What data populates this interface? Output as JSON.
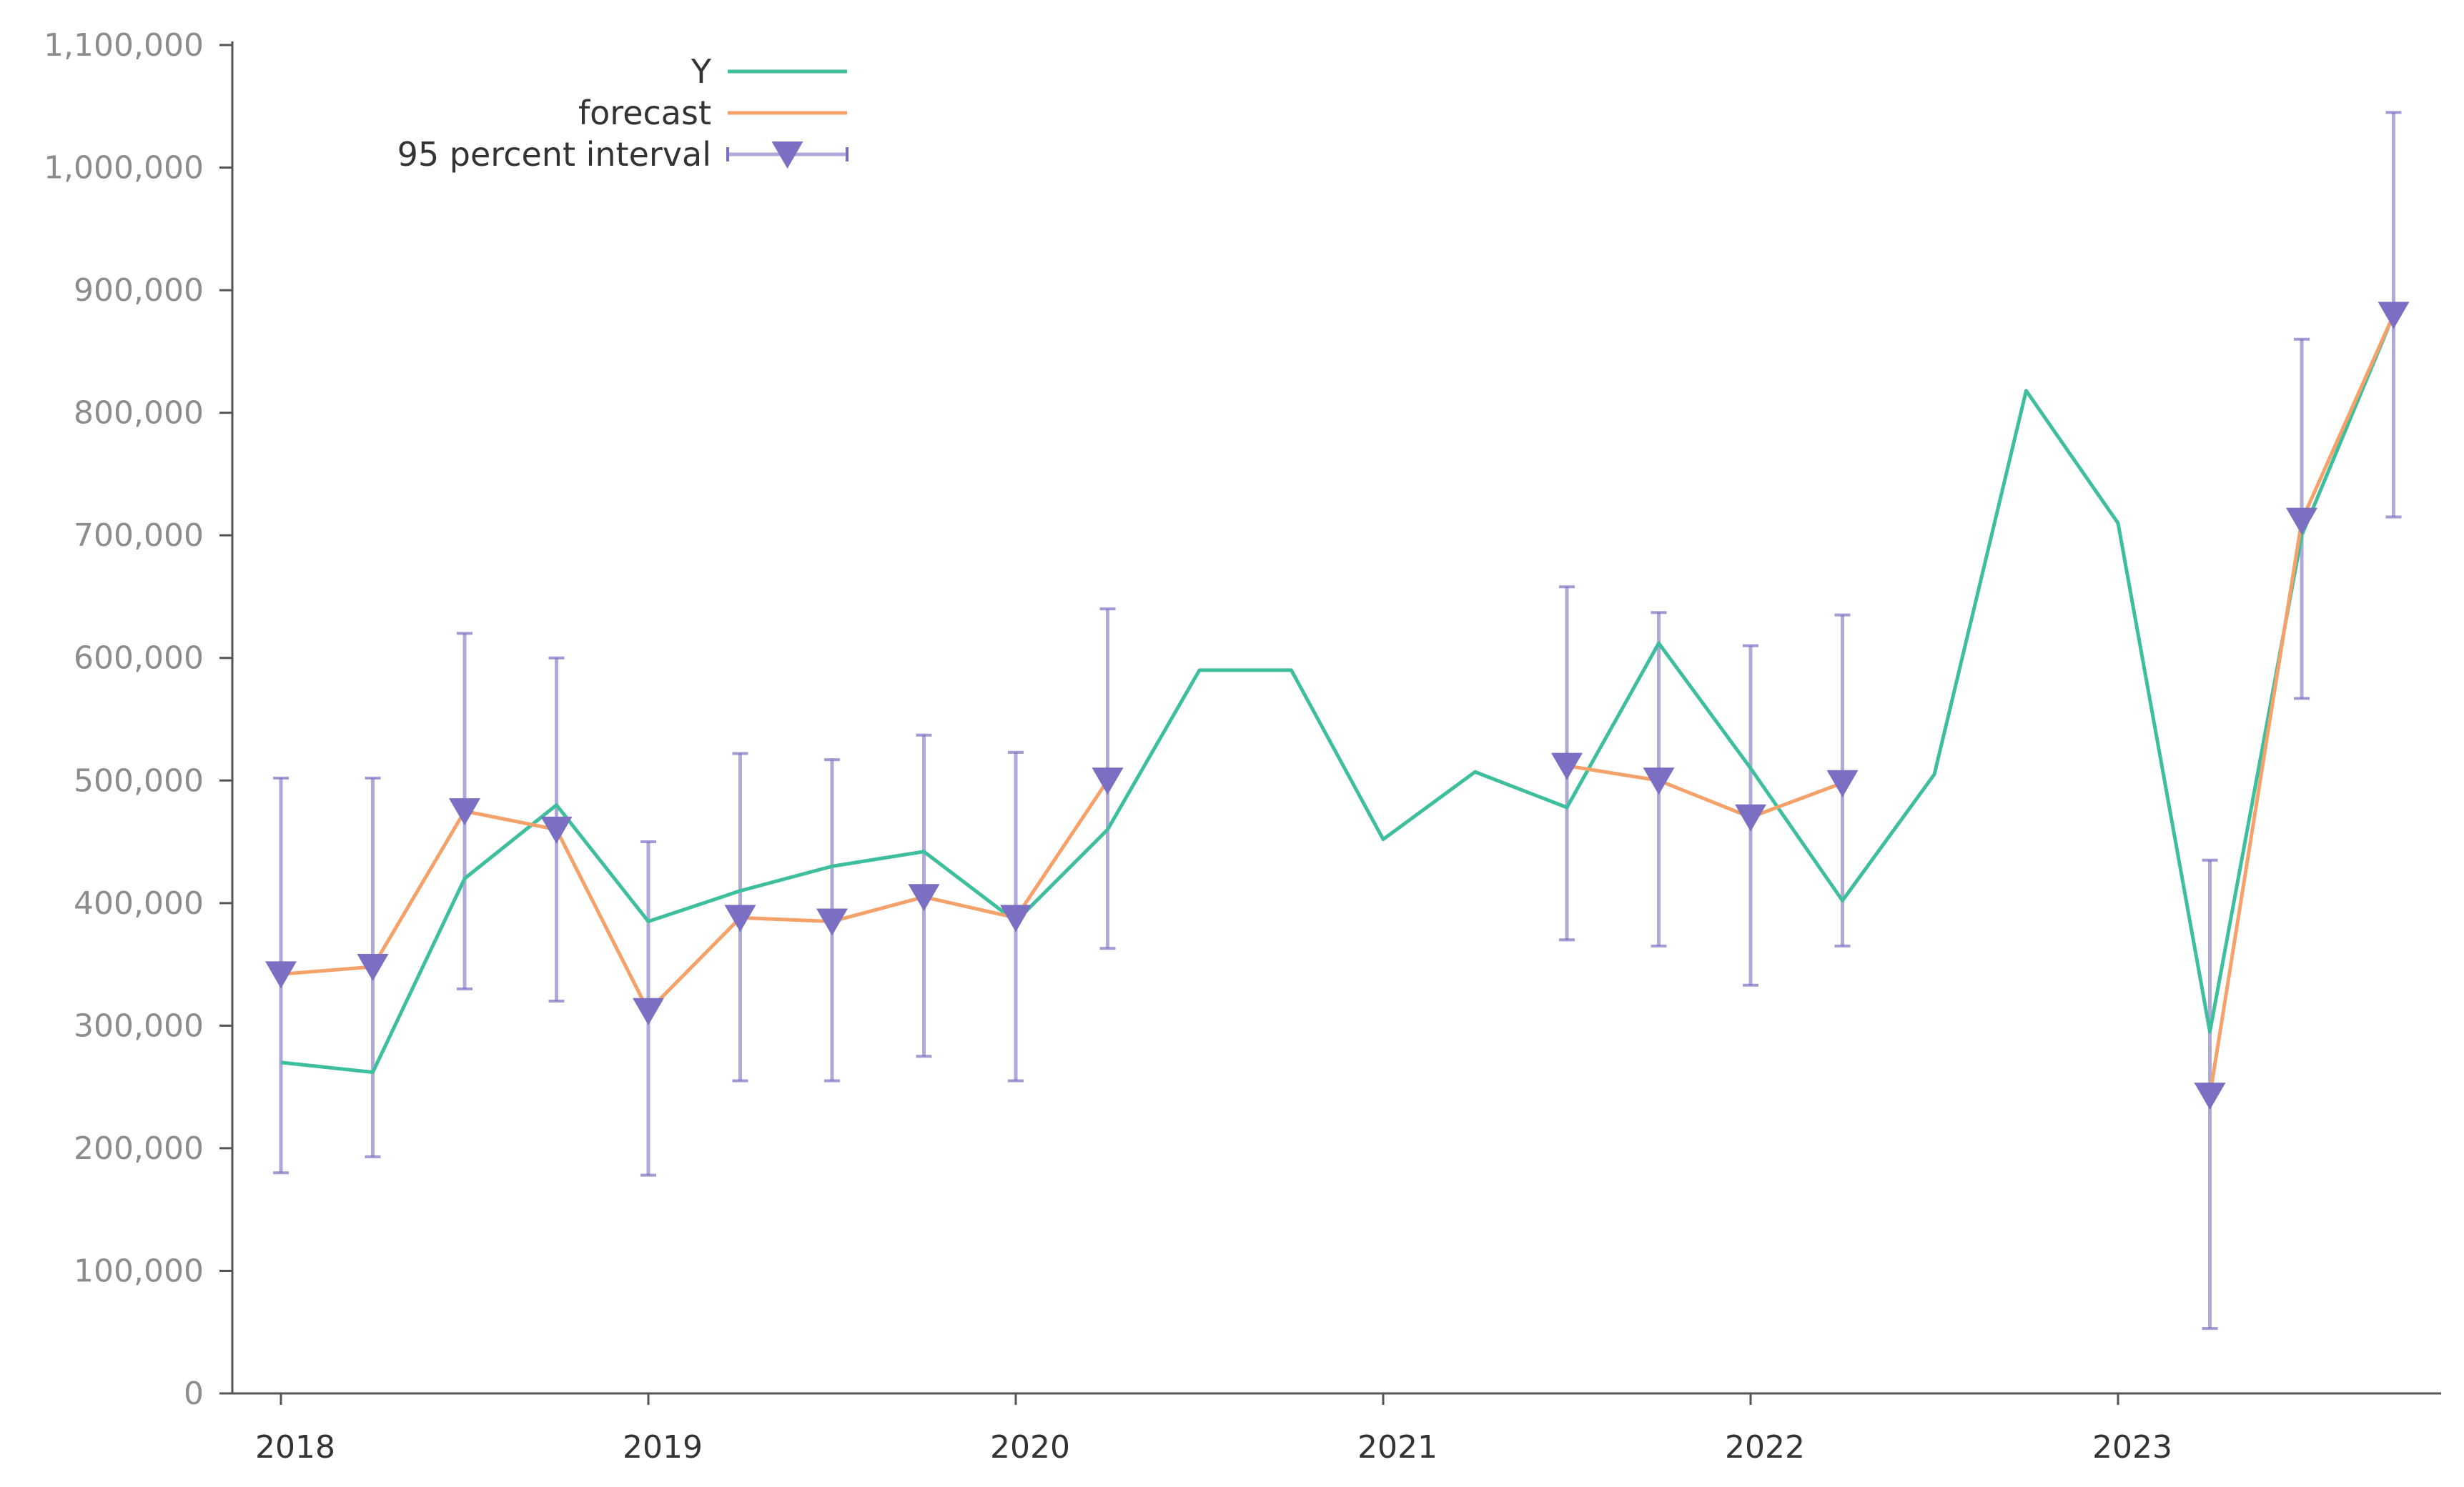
{
  "chart_data": {
    "type": "line",
    "title": "",
    "xlabel": "",
    "ylabel": "",
    "ylim": [
      0,
      1100000
    ],
    "y_ticks": [
      0,
      100000,
      200000,
      300000,
      400000,
      500000,
      600000,
      700000,
      800000,
      900000,
      1000000,
      1100000
    ],
    "y_tick_labels": [
      "0",
      "100,000",
      "200,000",
      "300,000",
      "400,000",
      "500,000",
      "600,000",
      "700,000",
      "800,000",
      "900,000",
      "1,000,000",
      "1,100,000"
    ],
    "x_tick_labels": [
      "2018",
      "2019",
      "2020",
      "2021",
      "2022",
      "2023"
    ],
    "legend_position": "top-left",
    "grid": false,
    "colors": {
      "Y": "#3dbf9e",
      "forecast": "#f5a16a",
      "interval": "#7a6fc2"
    },
    "x": [
      "2018 Q1",
      "2018 Q2",
      "2018 Q3",
      "2018 Q4",
      "2019 Q1",
      "2019 Q2",
      "2019 Q3",
      "2019 Q4",
      "2020 Q1",
      "2020 Q2",
      "2020 Q3",
      "2020 Q4",
      "2021 Q1",
      "2021 Q2",
      "2021 Q3",
      "2021 Q4",
      "2022 Q1",
      "2022 Q2",
      "2022 Q3",
      "2022 Q4",
      "2023 Q1",
      "2023 Q2",
      "2023 Q3",
      "2023 Q4"
    ],
    "series": [
      {
        "name": "Y",
        "values": [
          270000,
          262000,
          420000,
          480000,
          385000,
          410000,
          430000,
          442000,
          385000,
          460000,
          590000,
          590000,
          452000,
          507000,
          478000,
          612000,
          510000,
          402000,
          505000,
          818000,
          710000,
          295000,
          700000,
          880000
        ]
      },
      {
        "name": "forecast",
        "values": [
          342000,
          348000,
          475000,
          460000,
          312000,
          388000,
          385000,
          405000,
          388000,
          500000,
          null,
          null,
          null,
          null,
          512000,
          500000,
          470000,
          498000,
          null,
          null,
          null,
          243000,
          712000,
          880000
        ]
      },
      {
        "name": "95 percent interval",
        "type": "errorbar",
        "values": [
          342000,
          348000,
          475000,
          460000,
          312000,
          388000,
          385000,
          405000,
          388000,
          500000,
          null,
          null,
          null,
          null,
          512000,
          500000,
          470000,
          498000,
          null,
          null,
          null,
          243000,
          712000,
          880000
        ],
        "lower": [
          180000,
          193000,
          330000,
          320000,
          178000,
          255000,
          255000,
          275000,
          255000,
          363000,
          null,
          null,
          null,
          null,
          370000,
          365000,
          333000,
          365000,
          null,
          null,
          null,
          53000,
          567000,
          715000
        ],
        "upper": [
          502000,
          502000,
          620000,
          600000,
          450000,
          522000,
          517000,
          537000,
          523000,
          640000,
          null,
          null,
          null,
          null,
          658000,
          637000,
          610000,
          635000,
          null,
          null,
          null,
          435000,
          860000,
          1045000
        ]
      }
    ]
  }
}
